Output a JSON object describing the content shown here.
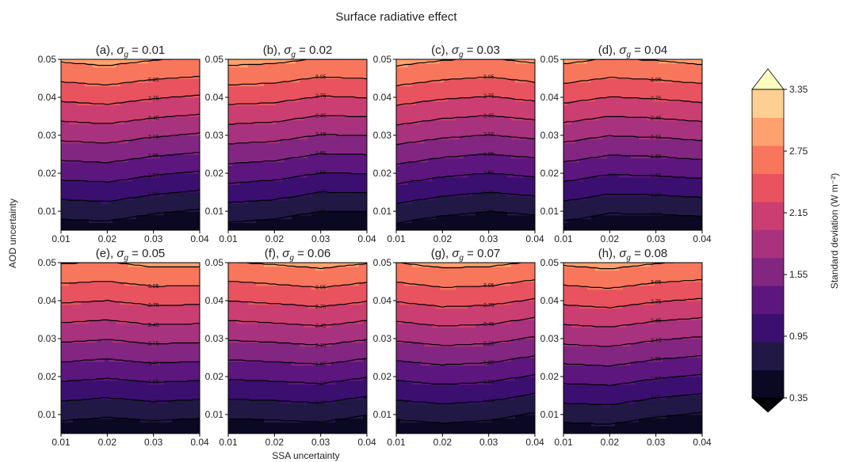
{
  "suptitle": "Surface radiative effect",
  "xlabel": "SSA uncertainty",
  "ylabel": "AOD uncertainty",
  "colorbar": {
    "label": "Standard deviation (W m⁻²)",
    "ticks": [
      "0.35",
      "0.95",
      "1.55",
      "2.15",
      "2.75",
      "3.35"
    ],
    "levels": [
      0.35,
      0.65,
      0.95,
      1.25,
      1.55,
      1.85,
      2.15,
      2.45,
      2.75,
      3.05,
      3.35
    ],
    "colors": [
      "#0a0822",
      "#211845",
      "#3b0f70",
      "#5c167e",
      "#822681",
      "#a8327d",
      "#cb3e71",
      "#e8535f",
      "#f8765c",
      "#fea16e",
      "#fecf92"
    ],
    "extend": "both",
    "extend_top_color": "#fcfdbf",
    "extend_bottom_color": "#000004"
  },
  "chart_data": {
    "type": "contour",
    "xticks": [
      "0.01",
      "0.02",
      "0.03",
      "0.04"
    ],
    "yticks": [
      "0.01",
      "0.02",
      "0.03",
      "0.04",
      "0.05"
    ],
    "xlim": [
      0.01,
      0.04
    ],
    "ylim": [
      0.005,
      0.05
    ],
    "contour_labels": [
      "0.65",
      "0.95",
      "1.25",
      "1.55",
      "1.85",
      "2.15",
      "2.45",
      "2.75",
      "3.05"
    ],
    "panels": [
      {
        "title": "(a),",
        "sigma_value": "0.01"
      },
      {
        "title": "(b),",
        "sigma_value": "0.02"
      },
      {
        "title": "(c),",
        "sigma_value": "0.03"
      },
      {
        "title": "(d),",
        "sigma_value": "0.04"
      },
      {
        "title": "(e),",
        "sigma_value": "0.05"
      },
      {
        "title": "(f),",
        "sigma_value": "0.06"
      },
      {
        "title": "(g),",
        "sigma_value": "0.07"
      },
      {
        "title": "(h),",
        "sigma_value": "0.08"
      }
    ]
  }
}
